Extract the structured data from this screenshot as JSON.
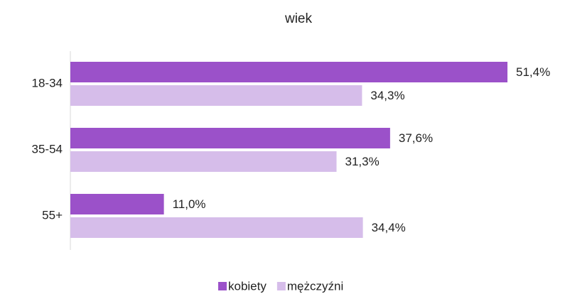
{
  "chart_data": {
    "type": "bar",
    "orientation": "horizontal",
    "title": "wiek",
    "categories": [
      "18-34",
      "35-54",
      "55+"
    ],
    "series": [
      {
        "name": "kobiety",
        "color": "#9b51c9",
        "values": [
          51.4,
          37.6,
          11.0
        ],
        "value_labels": [
          "51,4%",
          "37,6%",
          "11,0%"
        ]
      },
      {
        "name": "mężczyźni",
        "color": "#d6bdea",
        "values": [
          34.3,
          31.3,
          34.4
        ],
        "value_labels": [
          "34,3%",
          "31,3%",
          "34,4%"
        ]
      }
    ],
    "legend": "bottom"
  }
}
